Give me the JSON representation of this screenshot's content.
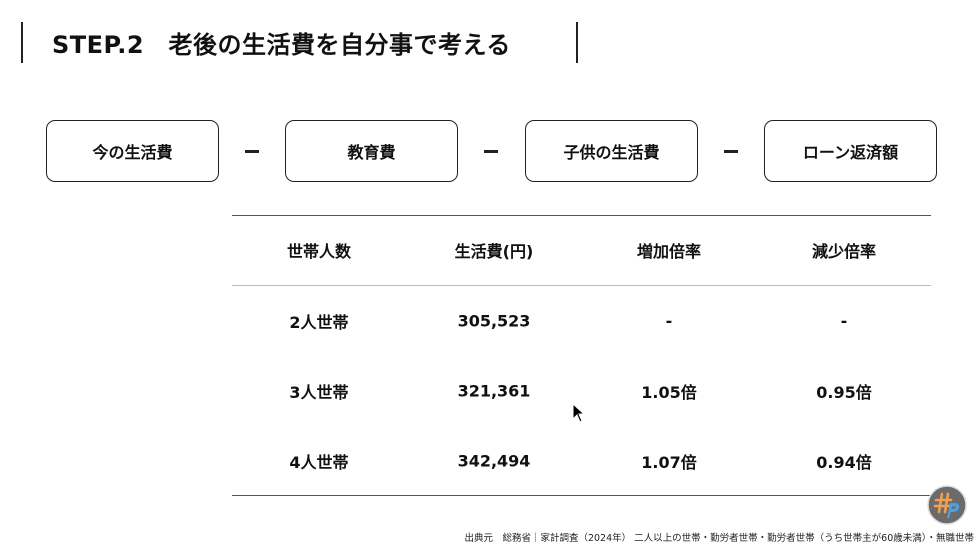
{
  "title": "STEP.2　老後の生活費を自分事で考える",
  "formula": {
    "terms": [
      "今の生活費",
      "教育費",
      "子供の生活費",
      "ローン返済額"
    ],
    "operator": "minus"
  },
  "table": {
    "headers": [
      "世帯人数",
      "生活費(円)",
      "増加倍率",
      "減少倍率"
    ],
    "rows": [
      [
        "2人世帯",
        "305,523",
        "-",
        "-"
      ],
      [
        "3人世帯",
        "321,361",
        "1.05倍",
        "0.95倍"
      ],
      [
        "4人世帯",
        "342,494",
        "1.07倍",
        "0.94倍"
      ]
    ]
  },
  "footer": "出典元　総務省｜家計調査（2024年） 二人以上の世帯・勤労者世帯・勤労者世帯（うち世帯主が60歳未満）・無職世帯",
  "logo": {
    "text": "#P",
    "colors": {
      "bg": "#6b6b6b",
      "hash": "#f0a050",
      "p": "#4aa0e0"
    }
  }
}
